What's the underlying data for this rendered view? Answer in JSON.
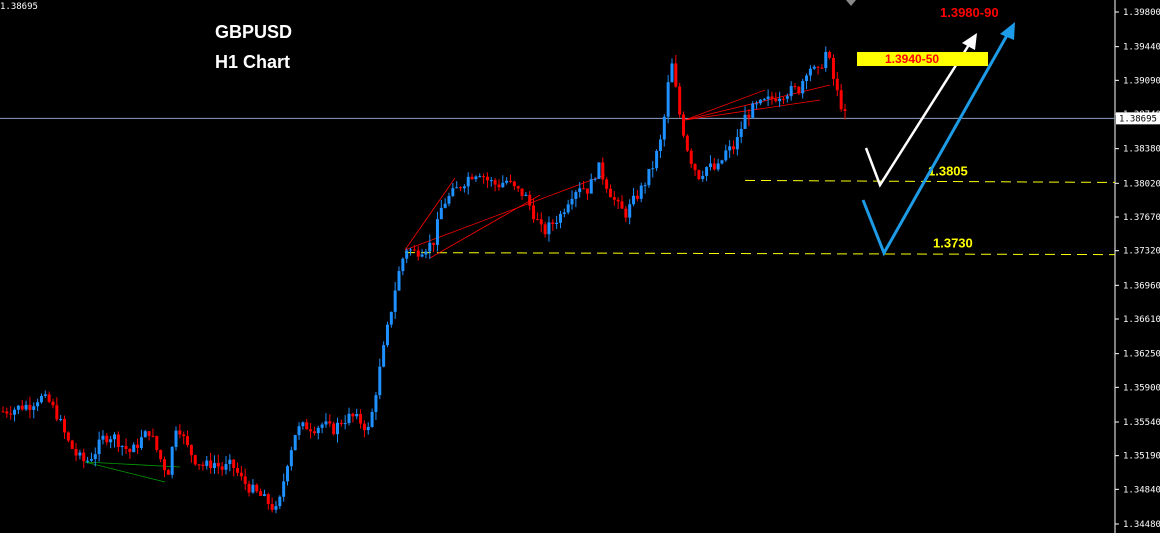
{
  "titles": {
    "symbol": "GBPUSD",
    "timeframe": "H1 Chart"
  },
  "corner_label": "1.38695",
  "colors": {
    "bull": "#1e90ff",
    "bear": "#ff0000",
    "grid": "#ffffff",
    "level": "#ffff00",
    "target_text": "#ff0000",
    "target_box": "#ffff00",
    "white_arrow": "#ffffff",
    "blue_arrow": "#1e9be6",
    "current_line": "#8aa0c0",
    "red_lines": "#ff0000",
    "green_lines": "#00a000"
  },
  "chart_data": {
    "type": "candlestick",
    "symbol": "GBPUSD",
    "timeframe": "H1",
    "ylim": [
      1.3435,
      1.3995
    ],
    "y_ticks": [
      "1.39800",
      "1.39440",
      "1.39090",
      "1.38740",
      "1.38380",
      "1.38020",
      "1.37670",
      "1.37320",
      "1.36960",
      "1.36610",
      "1.36250",
      "1.35900",
      "1.35540",
      "1.35190",
      "1.34840",
      "1.34480"
    ],
    "current_price": "1.38695",
    "levels": [
      {
        "price": 1.3805,
        "label": "1.3805"
      },
      {
        "price": 1.373,
        "label": "1.3730"
      }
    ],
    "target_labels": [
      {
        "label": "1.3980-90",
        "price": 1.3985
      },
      {
        "label": "1.3940-50",
        "price": 1.3945,
        "boxed": true
      }
    ],
    "path_points": [
      1.3565,
      1.3567,
      1.357,
      1.3572,
      1.358,
      1.3575,
      1.356,
      1.3535,
      1.352,
      1.3512,
      1.3522,
      1.3538,
      1.354,
      1.353,
      1.3522,
      1.3535,
      1.3545,
      1.352,
      1.35,
      1.3555,
      1.353,
      1.3515,
      1.3508,
      1.3512,
      1.3505,
      1.351,
      1.3495,
      1.3485,
      1.3478,
      1.347,
      1.346,
      1.351,
      1.3545,
      1.355,
      1.3548,
      1.3552,
      1.3545,
      1.3555,
      1.356,
      1.3555,
      1.3545,
      1.36,
      1.365,
      1.37,
      1.3735,
      1.373,
      1.3735,
      1.374,
      1.378,
      1.379,
      1.38,
      1.381,
      1.3815,
      1.3805,
      1.38,
      1.3805,
      1.3795,
      1.379,
      1.377,
      1.375,
      1.376,
      1.377,
      1.379,
      1.38,
      1.3795,
      1.382,
      1.38,
      1.378,
      1.377,
      1.3785,
      1.38,
      1.382,
      1.385,
      1.393,
      1.387,
      1.383,
      1.381,
      1.382,
      1.3815,
      1.3835,
      1.384,
      1.387,
      1.388,
      1.3885,
      1.389,
      1.3895,
      1.3898,
      1.39,
      1.3925,
      1.3915,
      1.394,
      1.39,
      1.3872
    ]
  }
}
